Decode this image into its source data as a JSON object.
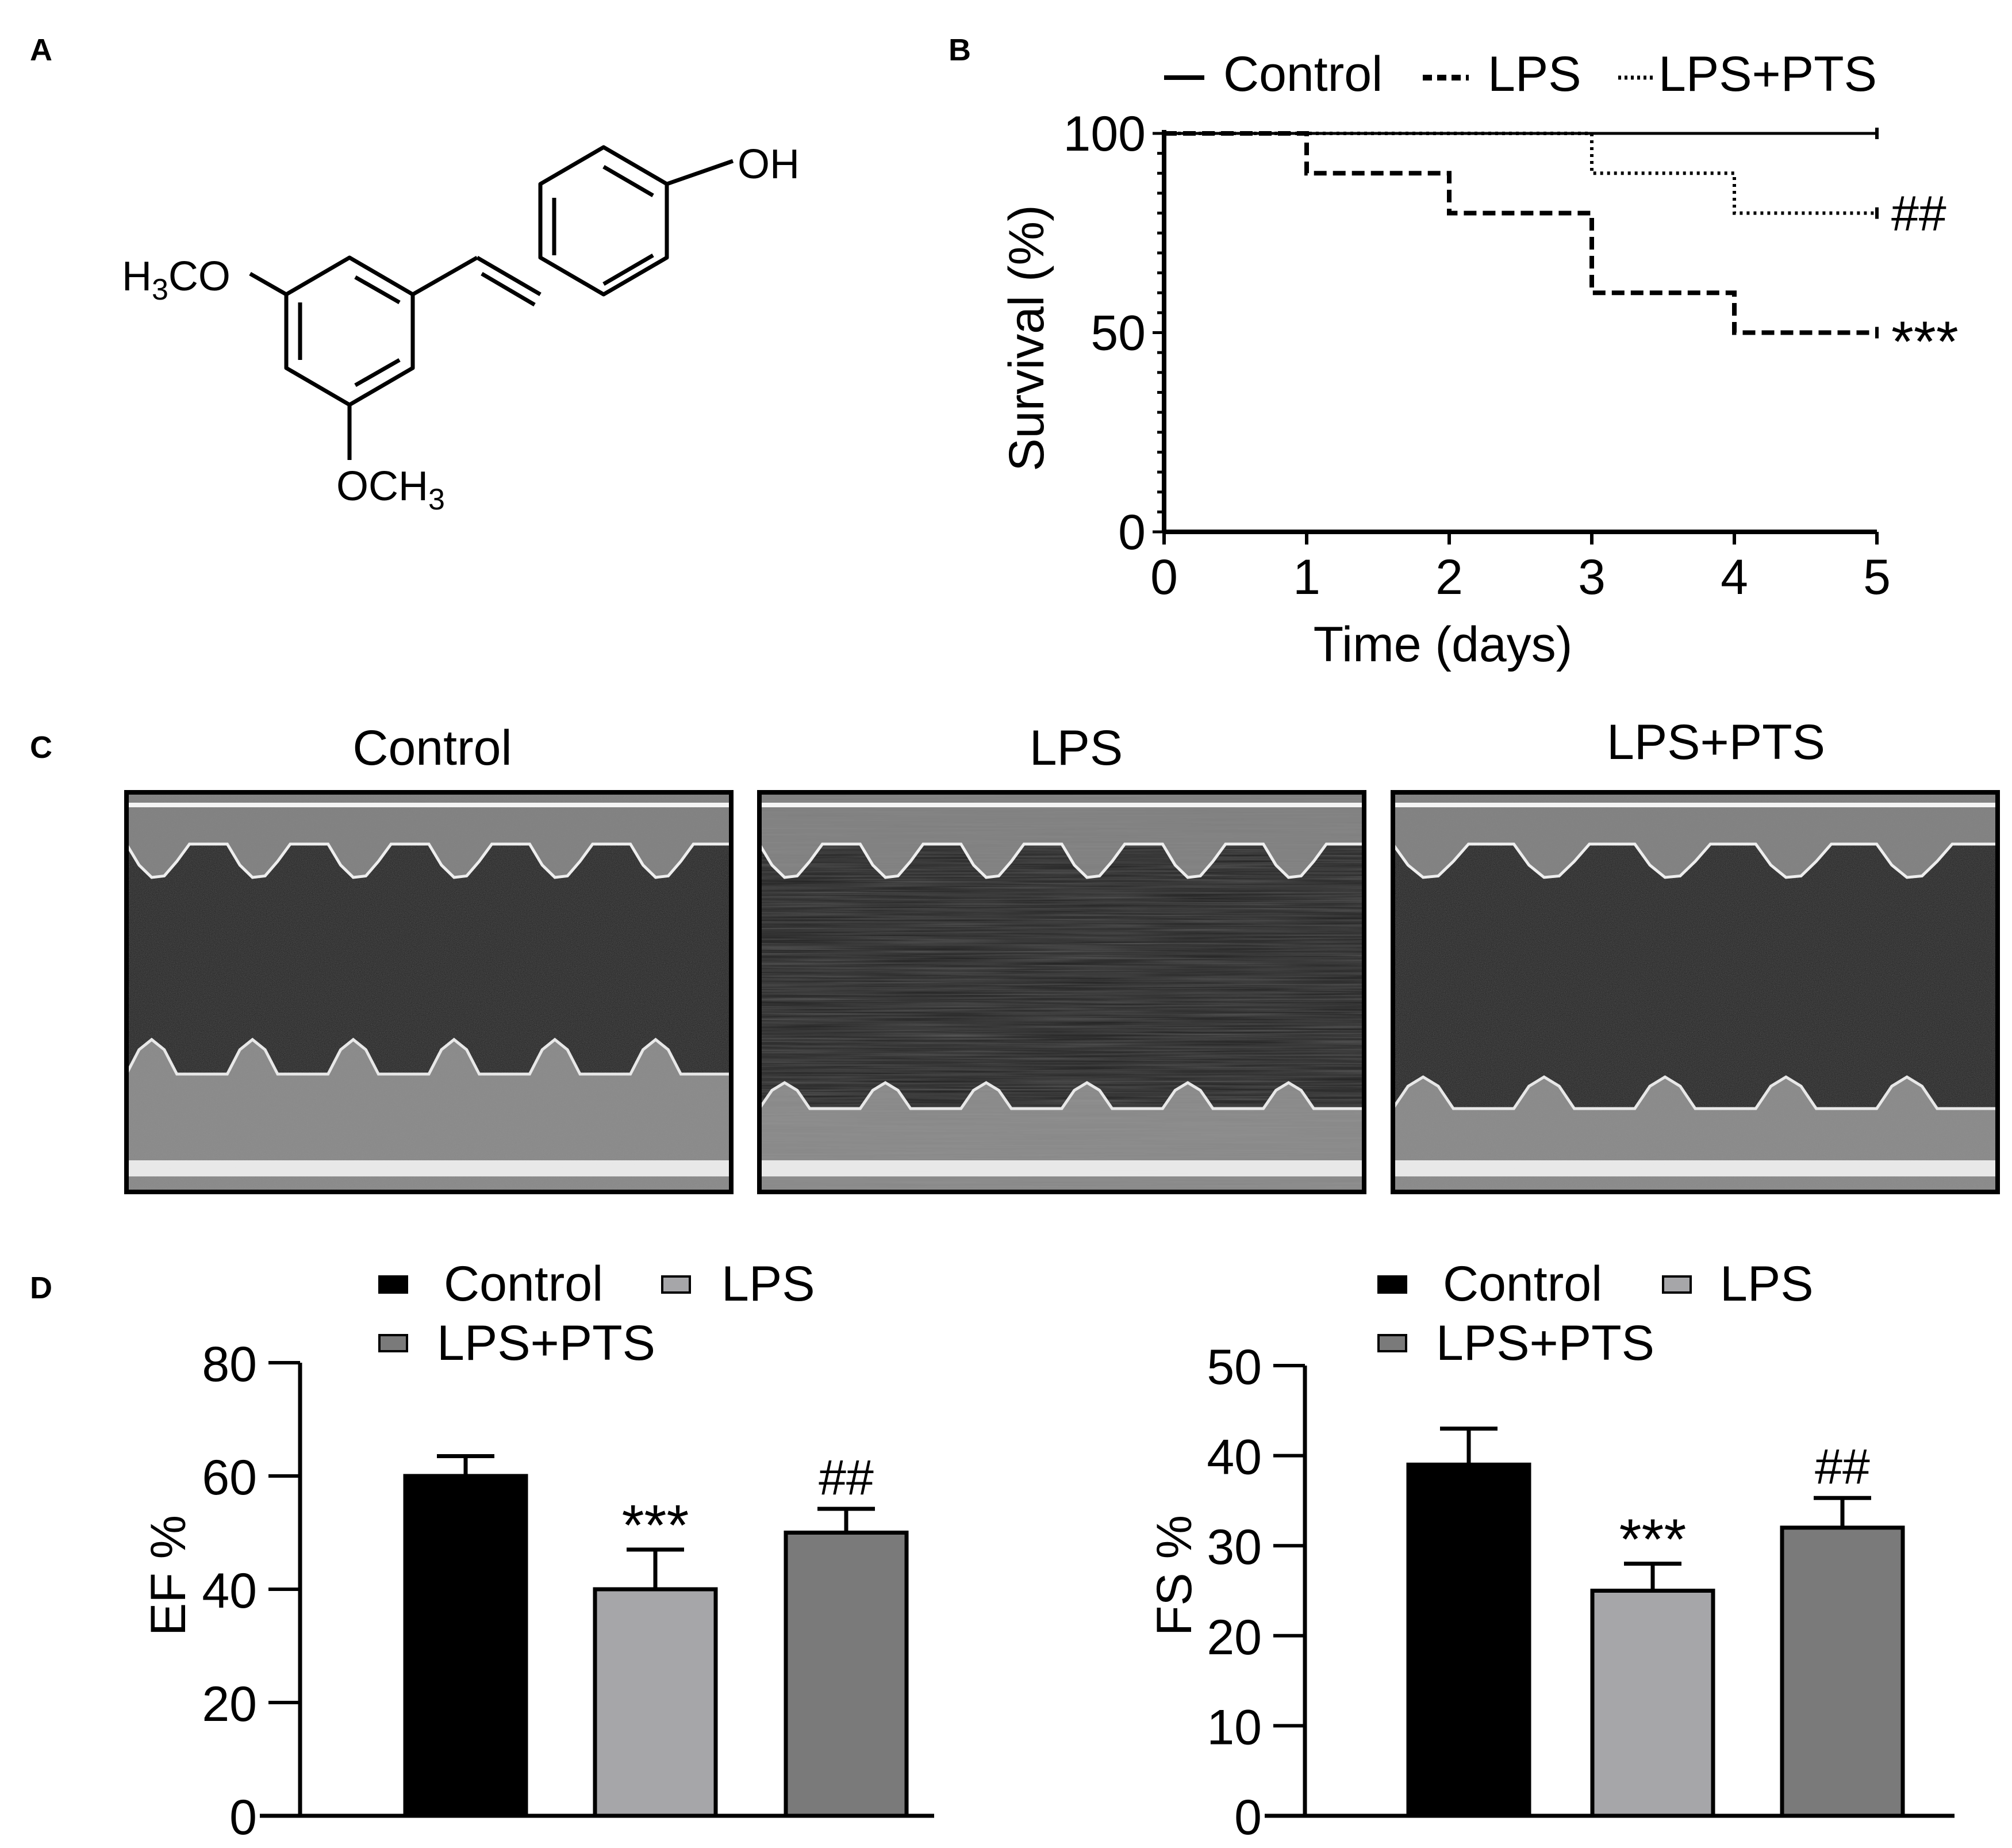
{
  "panel_labels": {
    "a": "A",
    "b": "B",
    "c": "C",
    "d": "D"
  },
  "structure": {
    "oh": "OH",
    "h3co_main": "H",
    "h3co_sub": "3",
    "h3co_tail": "CO",
    "och3_main": "OCH",
    "och3_sub": "3"
  },
  "echo": {
    "titles": [
      "Control",
      "LPS",
      "LPS+PTS"
    ]
  },
  "colors": {
    "control": "#000000",
    "lps": "#a6a6a9",
    "lps_pts": "#7a7a7a",
    "axis": "#000000"
  },
  "chart_data": [
    {
      "type": "line",
      "style": "survival-step",
      "xlabel": "Time (days)",
      "ylabel": "Survival (%)",
      "xlim": [
        0,
        5
      ],
      "ylim": [
        0,
        100
      ],
      "xticks": [
        "0",
        "1",
        "2",
        "3",
        "4",
        "5"
      ],
      "yticks": [
        "0",
        "50",
        "100"
      ],
      "legend": {
        "position": "top",
        "entries": [
          "Control",
          "LPS",
          "LPS+PTS"
        ]
      },
      "series": [
        {
          "name": "Control",
          "line": "solid",
          "x": [
            0,
            5
          ],
          "y": [
            100,
            100
          ],
          "annotation": ""
        },
        {
          "name": "LPS",
          "line": "dashed",
          "x": [
            0,
            1,
            2,
            3,
            4,
            5
          ],
          "y": [
            100,
            90,
            80,
            60,
            50,
            50
          ],
          "annotation": "***"
        },
        {
          "name": "LPS+PTS",
          "line": "dotted",
          "x": [
            0,
            3,
            4,
            5
          ],
          "y": [
            100,
            90,
            80,
            80
          ],
          "annotation": "##"
        }
      ]
    },
    {
      "type": "bar",
      "ylabel": "EF %",
      "ylim": [
        0,
        80
      ],
      "yticks": [
        "0",
        "20",
        "40",
        "60",
        "80"
      ],
      "legend": {
        "position": "top",
        "entries": [
          "Control",
          "LPS",
          "LPS+PTS"
        ]
      },
      "categories": [
        "Control",
        "LPS",
        "LPS+PTS"
      ],
      "values": [
        60,
        40,
        50
      ],
      "errors": [
        3.5,
        7,
        4.2
      ],
      "annotations": [
        "",
        "***",
        "##"
      ]
    },
    {
      "type": "bar",
      "ylabel": "FS %",
      "ylim": [
        0,
        50
      ],
      "yticks": [
        "0",
        "10",
        "20",
        "30",
        "40",
        "50"
      ],
      "legend": {
        "position": "top",
        "entries": [
          "Control",
          "LPS",
          "LPS+PTS"
        ]
      },
      "categories": [
        "Control",
        "LPS",
        "LPS+PTS"
      ],
      "values": [
        39,
        25,
        32
      ],
      "errors": [
        4,
        3,
        3.3
      ],
      "annotations": [
        "",
        "***",
        "##"
      ]
    }
  ]
}
